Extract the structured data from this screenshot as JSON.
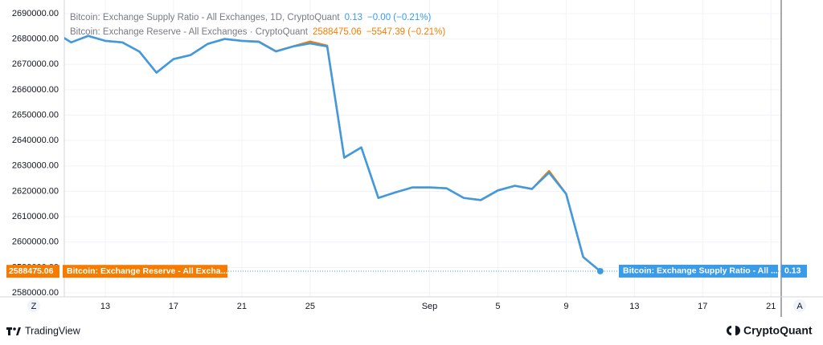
{
  "chart_data": {
    "type": "line",
    "x": [
      10,
      11,
      12,
      13,
      14,
      15,
      16,
      17,
      18,
      19,
      20,
      21,
      22,
      23,
      24,
      25,
      26,
      27,
      28,
      29,
      30,
      31,
      32,
      33,
      34,
      35,
      36,
      37,
      38,
      39,
      40,
      41,
      42
    ],
    "xlim": [
      10.6,
      52.6
    ],
    "xticks": [
      {
        "value": 13,
        "label": "13"
      },
      {
        "value": 17,
        "label": "17"
      },
      {
        "value": 21,
        "label": "21"
      },
      {
        "value": 25,
        "label": "25"
      },
      {
        "value": 32,
        "label": "Sep"
      },
      {
        "value": 36,
        "label": "5"
      },
      {
        "value": 40,
        "label": "9"
      },
      {
        "value": 44,
        "label": "13"
      },
      {
        "value": 48,
        "label": "17"
      },
      {
        "value": 52,
        "label": "21"
      }
    ],
    "ylim": [
      2580000,
      2690000
    ],
    "yticks": [
      {
        "value": 2580000,
        "label": "2580000.00"
      },
      {
        "value": 2590000,
        "label": "2590000.00"
      },
      {
        "value": 2600000,
        "label": "2600000.00"
      },
      {
        "value": 2610000,
        "label": "2610000.00"
      },
      {
        "value": 2620000,
        "label": "2620000.00"
      },
      {
        "value": 2630000,
        "label": "2630000.00"
      },
      {
        "value": 2640000,
        "label": "2640000.00"
      },
      {
        "value": 2650000,
        "label": "2650000.00"
      },
      {
        "value": 2660000,
        "label": "2660000.00"
      },
      {
        "value": 2670000,
        "label": "2670000.00"
      },
      {
        "value": 2680000,
        "label": "2680000.00"
      },
      {
        "value": 2690000,
        "label": "2690000.00"
      }
    ],
    "y2lim": [
      0.12958,
      0.13511
    ],
    "grid": true,
    "series": [
      {
        "name": "Bitcoin: Exchange Supply Ratio - All Exchanges, 1D, CryptoQuant",
        "color": "#3a9be6",
        "axis": "y2",
        "legend_value": "0.13",
        "legend_change": "−0.00 (−0.21%)",
        "tag": "Bitcoin: Exchange Supply Ratio - All ...",
        "values": [
          0.13475,
          0.13454,
          0.13467,
          0.13457,
          0.13454,
          0.13436,
          0.13394,
          0.13421,
          0.13429,
          0.13451,
          0.13461,
          0.13457,
          0.13455,
          0.13436,
          0.13446,
          0.13452,
          0.13446,
          0.13226,
          0.13246,
          0.13146,
          0.13157,
          0.13167,
          0.13167,
          0.13165,
          0.13146,
          0.13142,
          0.13161,
          0.1317,
          0.13164,
          0.13196,
          0.13154,
          0.13029,
          0.13001
        ]
      },
      {
        "name": "Bitcoin: Exchange Reserve - All Exchanges · CryptoQuant",
        "color": "#f57c00",
        "axis": "y",
        "legend_value": "2588475.06",
        "legend_change": "−5547.39 (−0.21%)",
        "tag": "Bitcoin: Exchange Reserve - All Excha...",
        "values": [
          2682900,
          2678700,
          2681200,
          2679300,
          2678700,
          2675000,
          2666800,
          2672100,
          2673700,
          2678100,
          2680000,
          2679300,
          2679000,
          2675200,
          2677100,
          2679000,
          2677400,
          2633200,
          2637300,
          2617400,
          2619600,
          2621500,
          2621500,
          2621200,
          2617400,
          2616500,
          2620300,
          2622200,
          2620900,
          2628000,
          2619000,
          2594100,
          2588475.06
        ]
      }
    ]
  },
  "ui": {
    "left_axis_button": "Z",
    "right_axis_button": "A",
    "footer_left": "TradingView",
    "footer_right": "CryptoQuant"
  }
}
